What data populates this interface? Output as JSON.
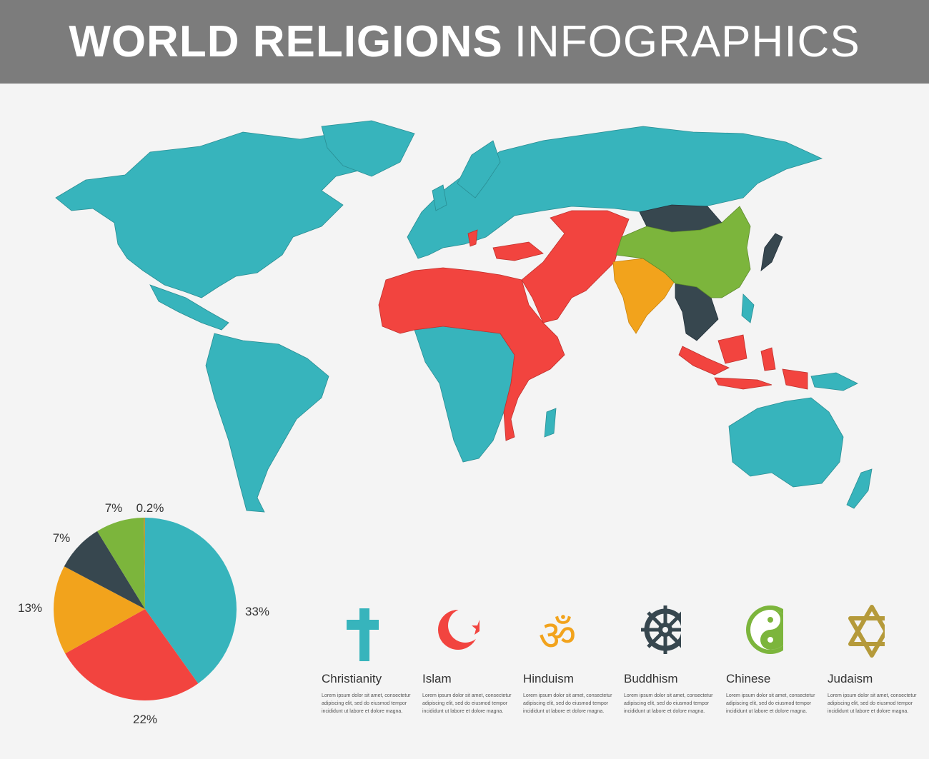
{
  "header": {
    "title_bold": "WORLD RELIGIONS",
    "title_light": "INFOGRAPHICS"
  },
  "colors": {
    "header_bg": "#7c7c7c",
    "christianity": "#37b4bc",
    "islam": "#f2443f",
    "hinduism": "#f2a31c",
    "buddhism": "#37474f",
    "chinese": "#7cb53c",
    "judaism": "#b59a3a"
  },
  "chart_data": {
    "type": "pie",
    "title": "",
    "slices": [
      {
        "label": "33%",
        "value": 33,
        "color": "#37b4bc"
      },
      {
        "label": "22%",
        "value": 22,
        "color": "#f2443f"
      },
      {
        "label": "13%",
        "value": 13,
        "color": "#f2a31c"
      },
      {
        "label": "7%",
        "value": 7,
        "color": "#37474f"
      },
      {
        "label": "7%",
        "value": 7,
        "color": "#7cb53c"
      },
      {
        "label": "0.2%",
        "value": 0.2,
        "color": "#b59a3a"
      }
    ]
  },
  "religions": [
    {
      "name": "Christianity",
      "icon": "cross-icon",
      "desc": "Lorem ipsum dolor sit amet, consectetur adipiscing elit, sed do eiusmod tempor incididunt ut labore et dolore magna."
    },
    {
      "name": "Islam",
      "icon": "crescent-star-icon",
      "desc": "Lorem ipsum dolor sit amet, consectetur adipiscing elit, sed do eiusmod tempor incididunt ut labore et dolore magna."
    },
    {
      "name": "Hinduism",
      "icon": "om-icon",
      "desc": "Lorem ipsum dolor sit amet, consectetur adipiscing elit, sed do eiusmod tempor incididunt ut labore et dolore magna."
    },
    {
      "name": "Buddhism",
      "icon": "dharma-wheel-icon",
      "desc": "Lorem ipsum dolor sit amet, consectetur adipiscing elit, sed do eiusmod tempor incididunt ut labore et dolore magna."
    },
    {
      "name": "Chinese",
      "icon": "yin-yang-icon",
      "desc": "Lorem ipsum dolor sit amet, consectetur adipiscing elit, sed do eiusmod tempor incididunt ut labore et dolore magna."
    },
    {
      "name": "Judaism",
      "icon": "star-of-david-icon",
      "desc": "Lorem ipsum dolor sit amet, consectetur adipiscing elit, sed do eiusmod tempor incididunt ut labore et dolore magna."
    }
  ]
}
